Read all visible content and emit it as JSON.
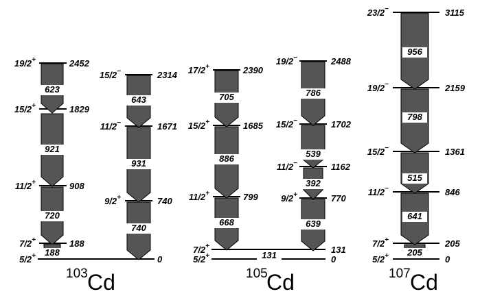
{
  "nuclei": [
    {
      "mass": "103",
      "symbol": "Cd"
    },
    {
      "mass": "105",
      "symbol": "Cd"
    },
    {
      "mass": "107",
      "symbol": "Cd"
    }
  ],
  "levels": {
    "cd103_left": [
      {
        "spin": "19/2",
        "parity": "+",
        "energy": "2452"
      },
      {
        "spin": "15/2",
        "parity": "+",
        "energy": "1829"
      },
      {
        "spin": "11/2",
        "parity": "+",
        "energy": "908"
      },
      {
        "spin": "7/2",
        "parity": "+",
        "energy": "188"
      },
      {
        "spin": "5/2",
        "parity": "+",
        "energy": ""
      }
    ],
    "cd103_right": [
      {
        "spin": "15/2",
        "parity": "−",
        "energy": "2314"
      },
      {
        "spin": "11/2",
        "parity": "−",
        "energy": "1671"
      },
      {
        "spin": "9/2",
        "parity": "+",
        "energy": "740"
      },
      {
        "spin": "",
        "parity": "",
        "energy": "0"
      }
    ],
    "cd105_left": [
      {
        "spin": "17/2",
        "parity": "+",
        "energy": "2390"
      },
      {
        "spin": "15/2",
        "parity": "+",
        "energy": "1685"
      },
      {
        "spin": "11/2",
        "parity": "+",
        "energy": "799"
      },
      {
        "spin": "7/2",
        "parity": "+",
        "energy": ""
      },
      {
        "spin": "5/2",
        "parity": "+",
        "energy": ""
      }
    ],
    "cd105_right": [
      {
        "spin": "19/2",
        "parity": "−",
        "energy": "2488"
      },
      {
        "spin": "15/2",
        "parity": "−",
        "energy": "1702"
      },
      {
        "spin": "11/2",
        "parity": "−",
        "energy": "1162"
      },
      {
        "spin": "9/2",
        "parity": "+",
        "energy": "770"
      },
      {
        "spin": "",
        "parity": "",
        "energy": "131"
      },
      {
        "spin": "",
        "parity": "",
        "energy": "0"
      }
    ],
    "cd107": [
      {
        "spin": "23/2",
        "parity": "−",
        "energy": "3115"
      },
      {
        "spin": "19/2",
        "parity": "−",
        "energy": "2159"
      },
      {
        "spin": "15/2",
        "parity": "−",
        "energy": "1361"
      },
      {
        "spin": "11/2",
        "parity": "−",
        "energy": "846"
      },
      {
        "spin": "7/2",
        "parity": "+",
        "energy": "205"
      },
      {
        "spin": "5/2",
        "parity": "+",
        "energy": "0"
      }
    ]
  },
  "transitions": {
    "cd103_left": [
      "623",
      "921",
      "720",
      "188"
    ],
    "cd103_right": [
      "643",
      "931",
      "740"
    ],
    "cd105_left": [
      "705",
      "886",
      "668"
    ],
    "cd105_right": [
      "786",
      "539",
      "392",
      "639"
    ],
    "cd105_cross": "131",
    "cd107": [
      "956",
      "798",
      "515",
      "641",
      "205"
    ]
  },
  "colors": {
    "arrow_fill": "#555555",
    "line": "#000000"
  }
}
